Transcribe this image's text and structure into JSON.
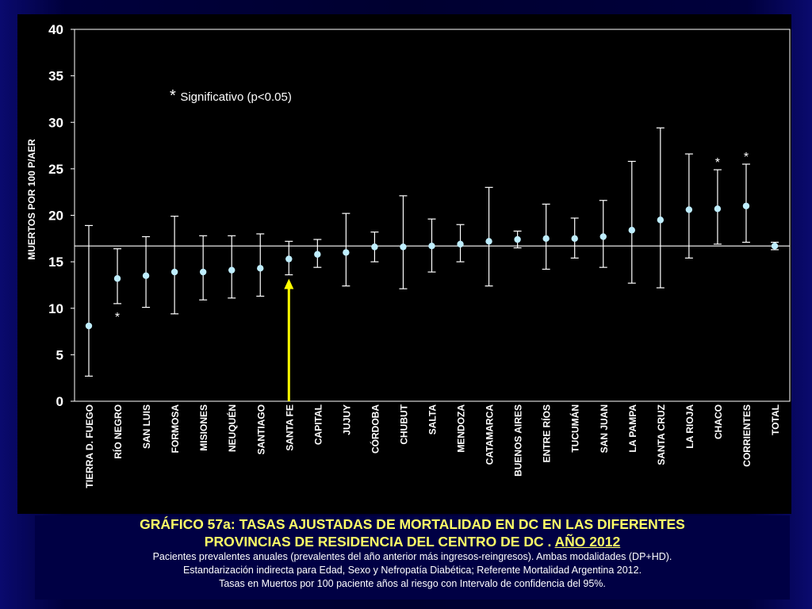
{
  "chart_data": {
    "type": "errorbar",
    "ylabel": "MUERTOS POR 100 P/AER",
    "ylim": [
      0,
      40
    ],
    "yticks": [
      "0",
      "5",
      "10",
      "15",
      "20",
      "25",
      "30",
      "35",
      "40"
    ],
    "grid": false,
    "reference_line": 16.7,
    "note": "Significativo (p<0.05)",
    "note_star": "*",
    "categories": [
      "TIERRA D. FUEGO",
      "RÍO NEGRO",
      "SAN LUIS",
      "FORMOSA",
      "MISIONES",
      "NEUQUÉN",
      "SANTIAGO",
      "SANTA FE",
      "CAPITAL",
      "JUJUY",
      "CÓRDOBA",
      "CHUBUT",
      "SALTA",
      "MENDOZA",
      "CATAMARCA",
      "BUENOS AIRES",
      "ENTRE RÍOS",
      "TUCUMÁN",
      "SAN JUAN",
      "LA PAMPA",
      "SANTA CRUZ",
      "LA RIOJA",
      "CHACO",
      "CORRIENTES",
      "TOTAL"
    ],
    "values": [
      8.1,
      13.2,
      13.5,
      13.9,
      13.9,
      14.1,
      14.3,
      15.3,
      15.8,
      16.0,
      16.6,
      16.6,
      16.7,
      16.9,
      17.2,
      17.4,
      17.5,
      17.5,
      17.7,
      18.4,
      19.5,
      20.6,
      20.7,
      21.0,
      16.7
    ],
    "lower": [
      2.7,
      10.5,
      10.1,
      9.4,
      10.9,
      11.1,
      11.3,
      13.6,
      14.4,
      12.4,
      15.0,
      12.1,
      13.9,
      15.0,
      12.4,
      16.5,
      14.2,
      15.4,
      14.4,
      12.7,
      12.2,
      15.4,
      16.9,
      17.1,
      16.3
    ],
    "upper": [
      18.9,
      16.4,
      17.7,
      19.9,
      17.8,
      17.8,
      18.0,
      17.2,
      17.4,
      20.2,
      18.2,
      22.1,
      19.6,
      19.0,
      23.0,
      18.3,
      21.2,
      19.7,
      21.6,
      25.8,
      29.4,
      26.6,
      24.9,
      25.5,
      17.1
    ],
    "significant": [
      "RÍO NEGRO",
      "CHACO",
      "CORRIENTES"
    ],
    "highlight_category": "SANTA FE",
    "colors": {
      "point": "#bfeeff",
      "bar": "#ffffff",
      "arrow": "#ffff00",
      "reference": "#ffffff"
    }
  },
  "caption": {
    "title_line1": "GRÁFICO 57a:  TASAS AJUSTADAS DE MORTALIDAD EN DC  EN LAS DIFERENTES",
    "title_line2": "PROVINCIAS DE RESIDENCIA DEL CENTRO DE DC . ",
    "title_year": "AÑO 2012",
    "line3": "Pacientes prevalentes anuales (prevalentes del año anterior más ingresos-reingresos). Ambas modalidades (DP+HD).",
    "line4": "Estandarización indirecta para Edad, Sexo y Nefropatía Diabética; Referente Mortalidad Argentina 2012.",
    "line5": "Tasas en Muertos por 100 paciente años al riesgo con Intervalo de confidencia del 95%."
  }
}
